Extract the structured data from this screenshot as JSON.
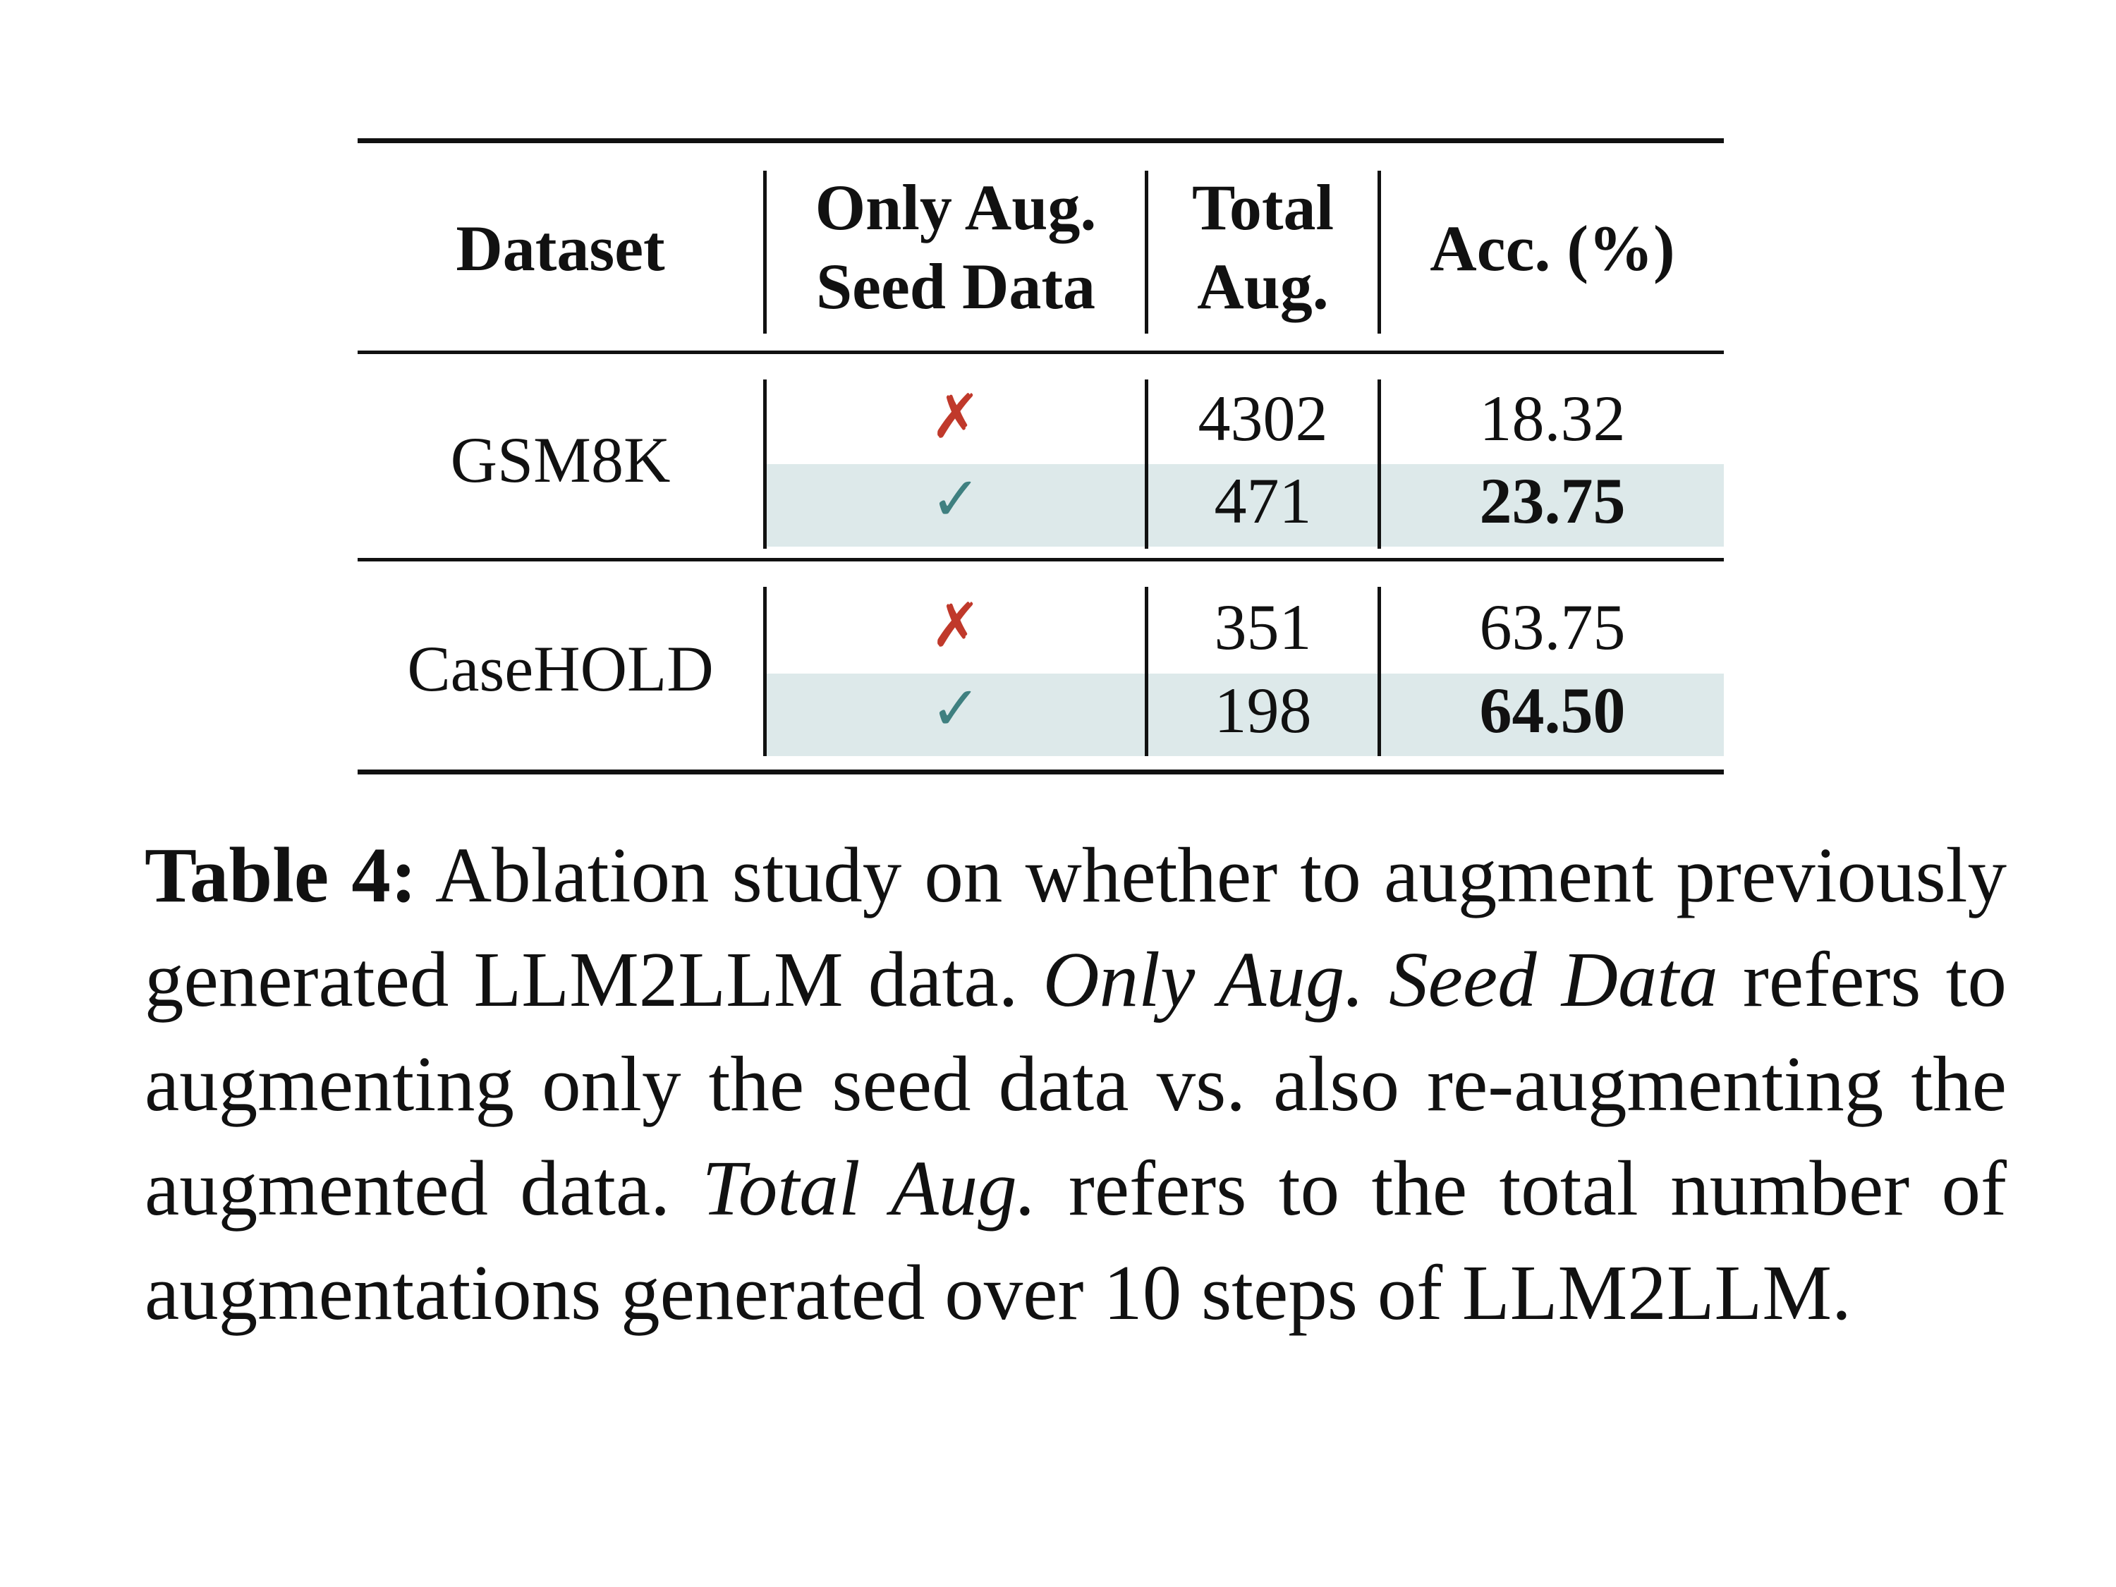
{
  "table": {
    "headers": {
      "dataset": "Dataset",
      "only_aug_line1": "Only Aug.",
      "only_aug_line2": "Seed Data",
      "total_line1": "Total",
      "total_line2": "Aug.",
      "acc": "Acc. (%)"
    },
    "groups": [
      {
        "dataset": "GSM8K",
        "rows": [
          {
            "only_aug_seed": "✗",
            "total_aug": "4302",
            "acc": "18.32",
            "highlight": false,
            "bold": false
          },
          {
            "only_aug_seed": "✓",
            "total_aug": "471",
            "acc": "23.75",
            "highlight": true,
            "bold": true
          }
        ]
      },
      {
        "dataset": "CaseHOLD",
        "rows": [
          {
            "only_aug_seed": "✗",
            "total_aug": "351",
            "acc": "63.75",
            "highlight": false,
            "bold": false
          },
          {
            "only_aug_seed": "✓",
            "total_aug": "198",
            "acc": "64.50",
            "highlight": true,
            "bold": true
          }
        ]
      }
    ],
    "colors": {
      "highlight": "#dde9ea",
      "cross": "#c0392b",
      "check": "#3f8080"
    }
  },
  "caption": {
    "label": "Table 4:",
    "text1": " Ablation study on whether to augment previously generated LLM2LLM data. ",
    "italic1": "Only Aug. Seed Data",
    "text2": " refers to augmenting only the seed data vs. also re-augmenting the augmented data. ",
    "italic2": "Total Aug.",
    "text3": " refers to the total number of augmentations generated over 10 steps of LLM2LLM."
  }
}
